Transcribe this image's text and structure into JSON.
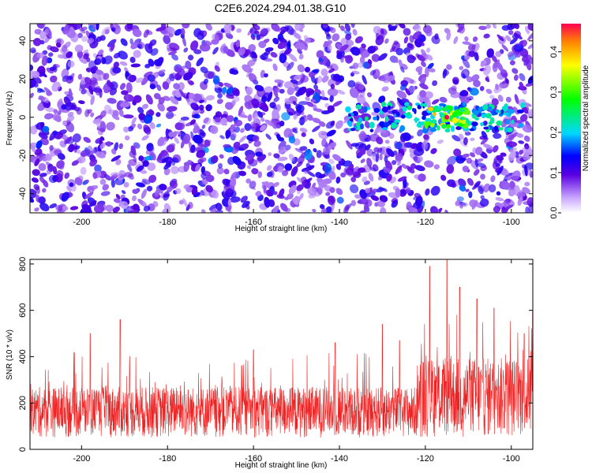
{
  "title": "C2E6.2024.294.01.38.G10",
  "chart_data": [
    {
      "type": "heatmap",
      "xlabel": "Height of straight line (km)",
      "ylabel": "Frequency (Hz)",
      "xlim": [
        -212,
        -95
      ],
      "ylim": [
        -50,
        49
      ],
      "x_ticks": [
        "-200",
        "-180",
        "-160",
        "-140",
        "-120",
        "-100"
      ],
      "y_ticks": [
        "40",
        "20",
        "0",
        "-20",
        "-40"
      ],
      "grid": false,
      "colorbar": {
        "label": "Normalized spectral amplitude",
        "range": [
          0,
          0.47
        ],
        "ticks": [
          "0.0",
          "0.1",
          "0.2",
          "0.3",
          "0.4"
        ],
        "placement": "right"
      },
      "features": [
        {
          "description_region": "scattered low-amplitude noise (~0.05-0.12) across all heights and frequencies"
        },
        {
          "x_range": [
            -138,
            -97
          ],
          "freq_center": 0,
          "freq_halfwidth": 7,
          "amplitude": 0.25
        },
        {
          "x_range": [
            -120,
            -110
          ],
          "freq_center": 0,
          "freq_halfwidth": 5,
          "amplitude": 0.4
        },
        {
          "x": -115,
          "freq": 0,
          "amplitude": 0.47
        }
      ]
    },
    {
      "type": "area",
      "xlabel": "Height of straight line (km)",
      "ylabel": "SNR (10 * v/v)",
      "xlim": [
        -212,
        -95
      ],
      "ylim": [
        0,
        820
      ],
      "x_ticks": [
        "-200",
        "-180",
        "-160",
        "-140",
        "-120",
        "-100"
      ],
      "y_ticks": [
        "800",
        "600",
        "400",
        "200",
        "0"
      ],
      "grid": false,
      "series": [
        {
          "color": "#ee2222",
          "segments": [
            {
              "x_range": [
                -212,
                -122
              ],
              "baseline": 150,
              "range": [
                50,
                420
              ],
              "peaks": [
                [
                  -191,
                  560
                ],
                [
                  -198,
                  500
                ],
                [
                  -160,
                  430
                ],
                [
                  -141,
                  460
                ],
                [
                  -130,
                  540
                ],
                [
                  -126,
                  470
                ]
              ]
            },
            {
              "x_range": [
                -122,
                -95
              ],
              "baseline": 220,
              "range": [
                50,
                600
              ],
              "peaks": [
                [
                  -119,
                  790
                ],
                [
                  -115,
                  820
                ],
                [
                  -112,
                  700
                ],
                [
                  -108,
                  650
                ],
                [
                  -104,
                  610
                ],
                [
                  -97,
                  500
                ]
              ]
            }
          ]
        }
      ]
    }
  ]
}
